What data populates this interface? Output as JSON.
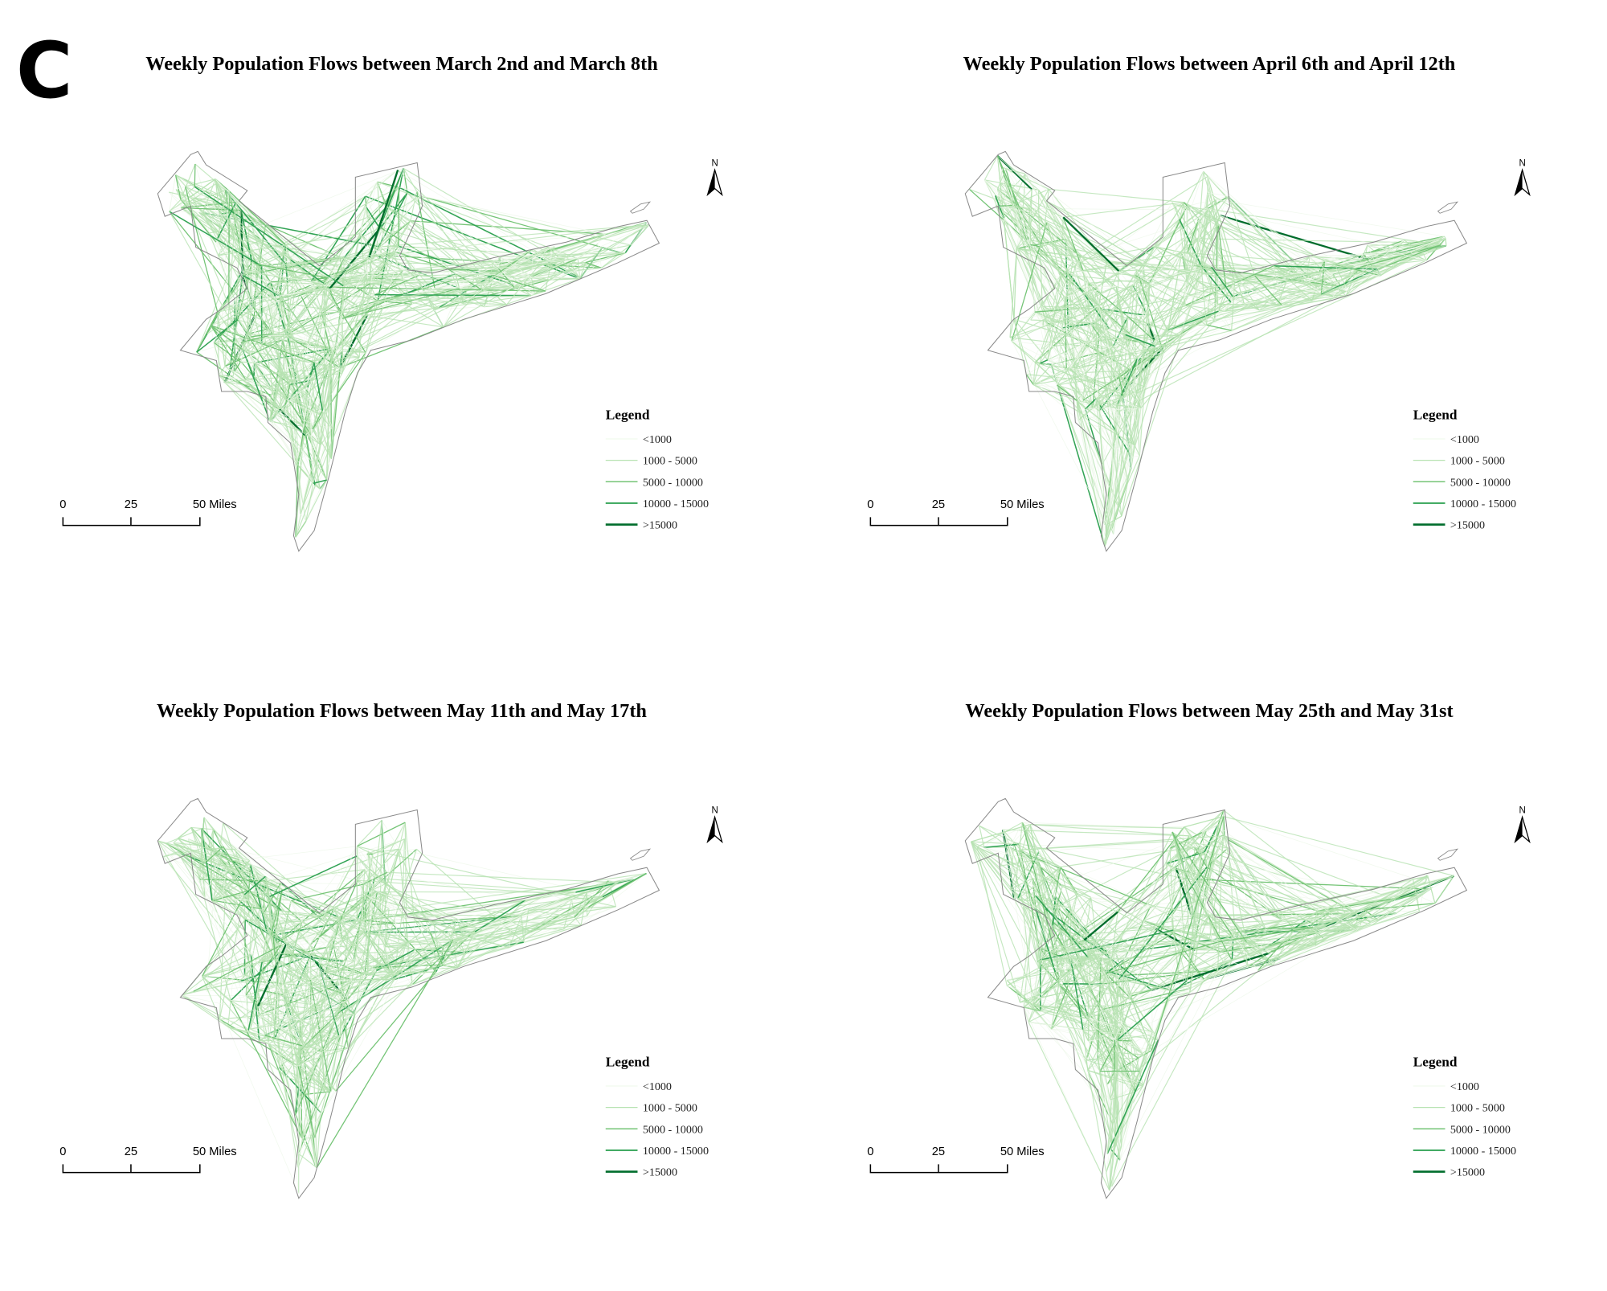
{
  "figure_label": "C",
  "panels": [
    {
      "title": "Weekly Population Flows between March 2nd and March 8th"
    },
    {
      "title": "Weekly Population Flows between April 6th and April 12th"
    },
    {
      "title": "Weekly Population Flows between May 11th and May 17th"
    },
    {
      "title": "Weekly Population Flows between May 25th and May 31st"
    }
  ],
  "legend": {
    "title": "Legend",
    "items": [
      {
        "label": "<1000",
        "color": "#edf8ea"
      },
      {
        "label": "1000  -  5000",
        "color": "#b7e2b1"
      },
      {
        "label": "5000  -  10000",
        "color": "#74c476"
      },
      {
        "label": "10000  -  15000",
        "color": "#31a354"
      },
      {
        "label": ">15000",
        "color": "#006d2c"
      }
    ]
  },
  "north_arrow": {
    "label": "N"
  },
  "scale_bar": {
    "ticks": [
      "0",
      "25",
      "50 Miles"
    ]
  },
  "colors": {
    "outline": "#8a8a8a"
  }
}
